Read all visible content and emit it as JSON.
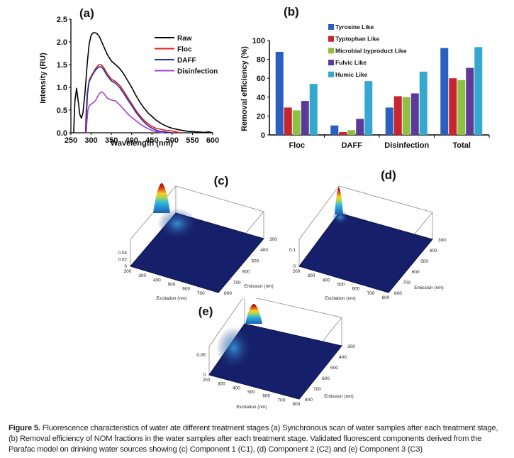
{
  "figure": {
    "caption_lead": "Figure 5.",
    "caption_text": " Fluorescence characteristics of water ate different treatment stages (a) Synchronous scan of water samples after each treatment stage, (b) Removal efficiency of NOM fractions in the water samples after each treatment stage. Validated fluorescent components derived from the Parafac model on drinking water sources showing (c) Component 1 (C1), (d) Component 2 (C2) and (e) Component 3 (C3)"
  },
  "chart_data": [
    {
      "panel": "(a)",
      "type": "line",
      "title": "(a)",
      "xlabel": "Wavelength (nm)",
      "ylabel": "Intensity (RU)",
      "xlim": [
        250,
        600
      ],
      "ylim": [
        0,
        2.5
      ],
      "xticks": [
        250,
        300,
        350,
        400,
        450,
        500,
        550,
        600
      ],
      "yticks": [
        "0.0",
        "0.5",
        "1.0",
        "1.5",
        "2.0",
        "2.5"
      ],
      "legend_position": "top-right",
      "series": [
        {
          "name": "Raw",
          "color": "#000000",
          "x": [
            257,
            258,
            260,
            264,
            268,
            272,
            276,
            280,
            285,
            290,
            295,
            300,
            305,
            310,
            315,
            320,
            325,
            330,
            340,
            350,
            360,
            370,
            380,
            390,
            400,
            410,
            420,
            430,
            440,
            450,
            460,
            470,
            480,
            490,
            500,
            520,
            540,
            560,
            580,
            590,
            600
          ],
          "y": [
            0,
            0.3,
            0.7,
            0.98,
            0.7,
            0.4,
            0.32,
            0.45,
            0.9,
            1.5,
            1.95,
            2.15,
            2.2,
            2.2,
            2.18,
            2.12,
            2.02,
            1.92,
            1.72,
            1.58,
            1.5,
            1.42,
            1.3,
            1.15,
            1.0,
            0.83,
            0.68,
            0.55,
            0.44,
            0.36,
            0.28,
            0.22,
            0.17,
            0.13,
            0.1,
            0.06,
            0.03,
            0.02,
            0.01,
            0.02,
            0.0
          ]
        },
        {
          "name": "Floc",
          "color": "#e02020",
          "x": [
            286,
            287,
            290,
            295,
            300,
            305,
            310,
            315,
            320,
            325,
            330,
            340,
            350,
            360,
            370,
            380,
            390,
            400,
            410,
            420,
            430,
            440,
            450,
            460,
            470,
            480,
            490,
            500,
            510,
            520
          ],
          "y": [
            0,
            0.3,
            0.85,
            1.15,
            1.25,
            1.32,
            1.4,
            1.46,
            1.5,
            1.5,
            1.45,
            1.3,
            1.18,
            1.13,
            1.05,
            0.92,
            0.78,
            0.64,
            0.5,
            0.38,
            0.28,
            0.2,
            0.14,
            0.1,
            0.08,
            0.06,
            0.05,
            0.04,
            0.02,
            0.0
          ]
        },
        {
          "name": "DAFF",
          "color": "#1f2fa8",
          "x": [
            287,
            288,
            291,
            295,
            300,
            305,
            310,
            315,
            320,
            325,
            330,
            340,
            350,
            360,
            370,
            380,
            390,
            400,
            410,
            420,
            430,
            440,
            450,
            460,
            470,
            480,
            490,
            500
          ],
          "y": [
            0,
            0.3,
            0.85,
            1.12,
            1.22,
            1.3,
            1.37,
            1.42,
            1.45,
            1.45,
            1.4,
            1.25,
            1.14,
            1.09,
            1.0,
            0.87,
            0.73,
            0.6,
            0.46,
            0.34,
            0.24,
            0.16,
            0.1,
            0.06,
            0.03,
            0.02,
            0.01,
            0.0
          ]
        },
        {
          "name": "Disinfection",
          "color": "#a040d0",
          "x": [
            288,
            289,
            292,
            296,
            300,
            305,
            310,
            315,
            320,
            325,
            330,
            335,
            340,
            350,
            360,
            370,
            380,
            390,
            400,
            410,
            420,
            430,
            440,
            450,
            460,
            470,
            480
          ],
          "y": [
            0,
            0.2,
            0.5,
            0.6,
            0.63,
            0.66,
            0.7,
            0.78,
            0.86,
            0.9,
            0.88,
            0.82,
            0.76,
            0.72,
            0.7,
            0.62,
            0.52,
            0.42,
            0.34,
            0.27,
            0.2,
            0.14,
            0.09,
            0.05,
            0.03,
            0.01,
            0.0
          ]
        }
      ]
    },
    {
      "panel": "(b)",
      "type": "bar",
      "title": "(b)",
      "xlabel": "",
      "ylabel": "Removal efficiency (%)",
      "ylim": [
        0,
        100
      ],
      "yticks": [
        0,
        20,
        40,
        60,
        80,
        100
      ],
      "categories": [
        "Floc",
        "DAFF",
        "Disinfection",
        "Total"
      ],
      "legend_position": "top-center",
      "series": [
        {
          "name": "Tyrosine Like",
          "color": "#2a5fbf",
          "values": [
            88,
            10,
            29,
            92
          ]
        },
        {
          "name": "Typtophan Like",
          "color": "#c8262e",
          "values": [
            29,
            3,
            41,
            60
          ]
        },
        {
          "name": "Microbial byproduct Like",
          "color": "#8fc043",
          "values": [
            26,
            5,
            40,
            58
          ]
        },
        {
          "name": "Fulvic Like",
          "color": "#5b3a9a",
          "values": [
            36,
            17,
            44,
            71
          ]
        },
        {
          "name": "Humic Like",
          "color": "#35a8d0",
          "values": [
            54,
            57,
            67,
            93
          ]
        }
      ]
    },
    {
      "panel": "(c)",
      "type": "surface",
      "title": "(c)",
      "xlabel": "Excitation (nm)",
      "ylabel": "Emission (nm)",
      "x_ticks": [
        200,
        300,
        400,
        500,
        600,
        700
      ],
      "y_ticks": [
        300,
        400,
        500,
        600,
        700,
        800
      ],
      "z_ticks": [
        "0",
        "0.02",
        "0.04"
      ]
    },
    {
      "panel": "(d)",
      "type": "surface",
      "title": "(d)",
      "xlabel": "Excitation (nm)",
      "ylabel": "Emission (nm)",
      "x_ticks": [
        200,
        300,
        400,
        500,
        600,
        700,
        800
      ],
      "y_ticks": [
        300,
        400,
        500,
        600,
        700,
        800
      ],
      "z_ticks": [
        "0",
        "0.1"
      ]
    },
    {
      "panel": "(e)",
      "type": "surface",
      "title": "(e)",
      "xlabel": "Excitation (nm)",
      "ylabel": "Emission (nm)",
      "x_ticks": [
        200,
        300,
        400,
        500,
        600,
        700,
        800
      ],
      "y_ticks": [
        300,
        400,
        500,
        600,
        700,
        800
      ],
      "z_ticks": [
        "0",
        "0.05"
      ]
    }
  ]
}
